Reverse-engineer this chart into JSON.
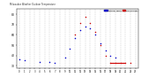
{
  "title": "Milwaukee Weather Outdoor Temperature vs THSW Index per Hour (24 Hours)",
  "background_color": "#ffffff",
  "plot_bg_color": "#ffffff",
  "grid_color": "#aaaaaa",
  "hours": [
    0,
    1,
    2,
    3,
    4,
    5,
    6,
    7,
    8,
    9,
    10,
    11,
    12,
    13,
    14,
    15,
    16,
    17,
    18,
    19,
    20,
    21,
    22,
    23
  ],
  "temp_values": [
    36,
    35,
    null,
    null,
    34,
    null,
    34,
    33,
    null,
    38,
    47,
    57,
    65,
    68,
    66,
    60,
    52,
    45,
    40,
    38,
    null,
    null,
    null,
    null
  ],
  "thsw_values": [
    null,
    null,
    null,
    null,
    null,
    null,
    null,
    null,
    null,
    null,
    null,
    60,
    72,
    78,
    72,
    63,
    50,
    40,
    33,
    33,
    33,
    33,
    33,
    null
  ],
  "temp_color": "#0000cc",
  "thsw_color": "#cc0000",
  "thsw_line_start": 18,
  "thsw_line_end": 21,
  "thsw_line_y": 33,
  "ylim": [
    28,
    85
  ],
  "yticks": [
    30,
    40,
    50,
    60,
    70,
    80
  ],
  "xlim": [
    -0.5,
    23.5
  ],
  "xticks": [
    0,
    1,
    2,
    3,
    4,
    5,
    6,
    7,
    8,
    9,
    10,
    11,
    12,
    13,
    14,
    15,
    16,
    17,
    18,
    19,
    20,
    21,
    22,
    23
  ],
  "legend_labels": [
    "Outdoor Temp",
    "THSW Index"
  ],
  "legend_colors": [
    "#0000cc",
    "#cc0000"
  ],
  "dot_size": 1.2
}
